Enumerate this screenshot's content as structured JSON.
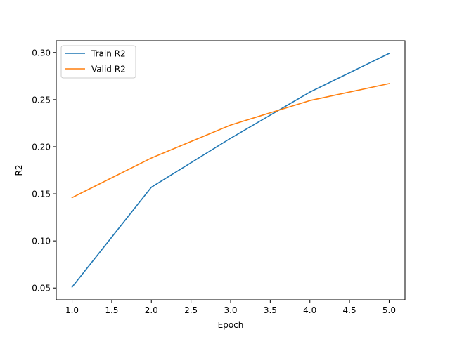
{
  "chart_data": {
    "type": "line",
    "xlabel": "Epoch",
    "ylabel": "R2",
    "xlim": [
      0.8,
      5.2
    ],
    "ylim": [
      0.0375,
      0.3125
    ],
    "xticks": [
      1.0,
      1.5,
      2.0,
      2.5,
      3.0,
      3.5,
      4.0,
      4.5,
      5.0
    ],
    "xtick_labels": [
      "1.0",
      "1.5",
      "2.0",
      "2.5",
      "3.0",
      "3.5",
      "4.0",
      "4.5",
      "5.0"
    ],
    "yticks": [
      0.05,
      0.1,
      0.15,
      0.2,
      0.25,
      0.3
    ],
    "ytick_labels": [
      "0.05",
      "0.10",
      "0.15",
      "0.20",
      "0.25",
      "0.30"
    ],
    "grid": false,
    "legend_position": "top-left",
    "x": [
      1,
      2,
      3,
      4,
      5
    ],
    "series": [
      {
        "name": "Train R2",
        "color": "#1f77b4",
        "values": [
          0.051,
          0.157,
          0.209,
          0.258,
          0.299
        ]
      },
      {
        "name": "Valid R2",
        "color": "#ff7f0e",
        "values": [
          0.146,
          0.188,
          0.223,
          0.249,
          0.267
        ]
      }
    ]
  }
}
